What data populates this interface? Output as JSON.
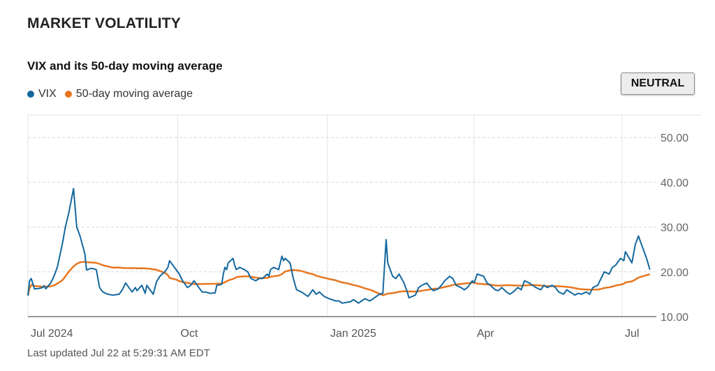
{
  "header": {
    "section_title": "MARKET VOLATILITY"
  },
  "badge": {
    "label": "NEUTRAL"
  },
  "footer": {
    "updated": "Last updated Jul 22 at 5:29:31 AM EDT"
  },
  "chart_data": {
    "type": "line",
    "title": "VIX and its 50-day moving average",
    "ylim": [
      10,
      55
    ],
    "y_ticks": [
      {
        "value": 10,
        "label": "10.00"
      },
      {
        "value": 20,
        "label": "20.00"
      },
      {
        "value": 30,
        "label": "30.00"
      },
      {
        "value": 40,
        "label": "40.00"
      },
      {
        "value": 50,
        "label": "50.00"
      }
    ],
    "xlim": [
      "2024-07-01",
      "2025-07-22"
    ],
    "x_ticks": [
      {
        "date": "2024-07-01",
        "label": "Jul 2024"
      },
      {
        "date": "2024-10-01",
        "label": "Oct"
      },
      {
        "date": "2025-01-01",
        "label": "Jan 2025"
      },
      {
        "date": "2025-04-01",
        "label": "Apr"
      },
      {
        "date": "2025-07-01",
        "label": "Jul"
      }
    ],
    "legend_position": "top-left",
    "grid": "horizontal dashed",
    "series": [
      {
        "name": "VIX",
        "color": "#13679e",
        "points": [
          [
            "2024-07-01",
            14.7
          ],
          [
            "2024-07-02",
            18.0
          ],
          [
            "2024-07-03",
            18.5
          ],
          [
            "2024-07-05",
            16.2
          ],
          [
            "2024-07-08",
            16.3
          ],
          [
            "2024-07-10",
            16.5
          ],
          [
            "2024-07-11",
            16.9
          ],
          [
            "2024-07-12",
            16.2
          ],
          [
            "2024-07-15",
            17.5
          ],
          [
            "2024-07-17",
            19.0
          ],
          [
            "2024-07-19",
            21.0
          ],
          [
            "2024-07-22",
            26.0
          ],
          [
            "2024-07-24",
            30.0
          ],
          [
            "2024-07-26",
            33.0
          ],
          [
            "2024-07-29",
            38.6
          ],
          [
            "2024-07-31",
            30.0
          ],
          [
            "2024-08-02",
            28.0
          ],
          [
            "2024-08-05",
            24.0
          ],
          [
            "2024-08-06",
            20.4
          ],
          [
            "2024-08-09",
            20.8
          ],
          [
            "2024-08-12",
            20.5
          ],
          [
            "2024-08-14",
            16.5
          ],
          [
            "2024-08-16",
            15.5
          ],
          [
            "2024-08-19",
            15.0
          ],
          [
            "2024-08-22",
            14.8
          ],
          [
            "2024-08-26",
            15.0
          ],
          [
            "2024-08-28",
            16.0
          ],
          [
            "2024-08-30",
            17.5
          ],
          [
            "2024-09-03",
            15.5
          ],
          [
            "2024-09-05",
            16.5
          ],
          [
            "2024-09-06",
            15.8
          ],
          [
            "2024-09-09",
            17.0
          ],
          [
            "2024-09-11",
            15.2
          ],
          [
            "2024-09-12",
            17.0
          ],
          [
            "2024-09-16",
            15.0
          ],
          [
            "2024-09-18",
            17.8
          ],
          [
            "2024-09-20",
            19.0
          ],
          [
            "2024-09-23",
            20.0
          ],
          [
            "2024-09-25",
            21.0
          ],
          [
            "2024-09-26",
            22.5
          ],
          [
            "2024-09-30",
            20.5
          ],
          [
            "2024-10-02",
            19.5
          ],
          [
            "2024-10-04",
            18.0
          ],
          [
            "2024-10-07",
            16.5
          ],
          [
            "2024-10-09",
            17.0
          ],
          [
            "2024-10-11",
            18.0
          ],
          [
            "2024-10-14",
            16.5
          ],
          [
            "2024-10-16",
            15.5
          ],
          [
            "2024-10-18",
            15.5
          ],
          [
            "2024-10-21",
            15.2
          ],
          [
            "2024-10-24",
            15.3
          ],
          [
            "2024-10-25",
            17.0
          ],
          [
            "2024-10-28",
            17.2
          ],
          [
            "2024-10-29",
            19.5
          ],
          [
            "2024-10-30",
            21.0
          ],
          [
            "2024-10-31",
            20.5
          ],
          [
            "2024-11-01",
            22.0
          ],
          [
            "2024-11-04",
            23.0
          ],
          [
            "2024-11-05",
            21.5
          ],
          [
            "2024-11-06",
            20.5
          ],
          [
            "2024-11-08",
            21.0
          ],
          [
            "2024-11-11",
            20.5
          ],
          [
            "2024-11-13",
            20.0
          ],
          [
            "2024-11-15",
            18.5
          ],
          [
            "2024-11-18",
            18.0
          ],
          [
            "2024-11-20",
            18.5
          ],
          [
            "2024-11-22",
            18.5
          ],
          [
            "2024-11-25",
            19.5
          ],
          [
            "2024-11-26",
            19.0
          ],
          [
            "2024-11-27",
            20.5
          ],
          [
            "2024-11-29",
            21.0
          ],
          [
            "2024-12-02",
            20.5
          ],
          [
            "2024-12-04",
            23.5
          ],
          [
            "2024-12-05",
            22.5
          ],
          [
            "2024-12-06",
            23.0
          ],
          [
            "2024-12-09",
            22.0
          ],
          [
            "2024-12-11",
            18.5
          ],
          [
            "2024-12-13",
            16.0
          ],
          [
            "2024-12-16",
            15.5
          ],
          [
            "2024-12-18",
            15.0
          ],
          [
            "2024-12-20",
            14.5
          ],
          [
            "2024-12-23",
            16.0
          ],
          [
            "2024-12-25",
            15.0
          ],
          [
            "2024-12-27",
            15.5
          ],
          [
            "2024-12-30",
            14.5
          ],
          [
            "2025-01-02",
            14.0
          ],
          [
            "2025-01-06",
            13.5
          ],
          [
            "2025-01-08",
            13.5
          ],
          [
            "2025-01-10",
            13.0
          ],
          [
            "2025-01-13",
            13.2
          ],
          [
            "2025-01-15",
            13.3
          ],
          [
            "2025-01-17",
            13.8
          ],
          [
            "2025-01-20",
            13.0
          ],
          [
            "2025-01-22",
            13.5
          ],
          [
            "2025-01-24",
            14.0
          ],
          [
            "2025-01-27",
            13.5
          ],
          [
            "2025-01-29",
            14.0
          ],
          [
            "2025-01-31",
            14.5
          ],
          [
            "2025-02-02",
            15.0
          ],
          [
            "2025-02-04",
            15.2
          ],
          [
            "2025-02-06",
            27.2
          ],
          [
            "2025-02-07",
            22.0
          ],
          [
            "2025-02-10",
            19.0
          ],
          [
            "2025-02-12",
            18.5
          ],
          [
            "2025-02-14",
            19.5
          ],
          [
            "2025-02-17",
            17.5
          ],
          [
            "2025-02-19",
            15.5
          ],
          [
            "2025-02-20",
            14.2
          ],
          [
            "2025-02-24",
            14.8
          ],
          [
            "2025-02-26",
            16.5
          ],
          [
            "2025-02-28",
            17.0
          ],
          [
            "2025-03-03",
            17.5
          ],
          [
            "2025-03-05",
            16.5
          ],
          [
            "2025-03-07",
            15.8
          ],
          [
            "2025-03-10",
            16.2
          ],
          [
            "2025-03-12",
            17.0
          ],
          [
            "2025-03-14",
            18.0
          ],
          [
            "2025-03-17",
            19.0
          ],
          [
            "2025-03-19",
            18.5
          ],
          [
            "2025-03-21",
            17.0
          ],
          [
            "2025-03-24",
            16.5
          ],
          [
            "2025-03-26",
            16.0
          ],
          [
            "2025-03-28",
            16.5
          ],
          [
            "2025-03-31",
            18.0
          ],
          [
            "2025-04-01",
            17.5
          ],
          [
            "2025-04-03",
            19.5
          ],
          [
            "2025-04-07",
            19.0
          ],
          [
            "2025-04-09",
            17.5
          ],
          [
            "2025-04-11",
            17.0
          ],
          [
            "2025-04-14",
            16.0
          ],
          [
            "2025-04-16",
            15.8
          ],
          [
            "2025-04-18",
            16.5
          ],
          [
            "2025-04-21",
            15.5
          ],
          [
            "2025-04-23",
            15.0
          ],
          [
            "2025-04-25",
            15.5
          ],
          [
            "2025-04-28",
            16.5
          ],
          [
            "2025-04-30",
            16.0
          ],
          [
            "2025-05-02",
            18.0
          ],
          [
            "2025-05-05",
            17.5
          ],
          [
            "2025-05-07",
            17.0
          ],
          [
            "2025-05-09",
            16.5
          ],
          [
            "2025-05-12",
            16.0
          ],
          [
            "2025-05-14",
            17.0
          ],
          [
            "2025-05-16",
            16.5
          ],
          [
            "2025-05-19",
            17.0
          ],
          [
            "2025-05-21",
            16.5
          ],
          [
            "2025-05-23",
            15.5
          ],
          [
            "2025-05-26",
            15.0
          ],
          [
            "2025-05-28",
            16.0
          ],
          [
            "2025-05-30",
            15.5
          ],
          [
            "2025-06-02",
            14.8
          ],
          [
            "2025-06-04",
            15.2
          ],
          [
            "2025-06-06",
            15.0
          ],
          [
            "2025-06-09",
            15.5
          ],
          [
            "2025-06-11",
            15.0
          ],
          [
            "2025-06-13",
            16.5
          ],
          [
            "2025-06-16",
            17.0
          ],
          [
            "2025-06-18",
            18.5
          ],
          [
            "2025-06-20",
            20.0
          ],
          [
            "2025-06-23",
            19.5
          ],
          [
            "2025-06-25",
            21.0
          ],
          [
            "2025-06-27",
            21.5
          ],
          [
            "2025-06-30",
            23.0
          ],
          [
            "2025-07-02",
            22.5
          ],
          [
            "2025-07-03",
            24.5
          ],
          [
            "2025-07-07",
            22.0
          ],
          [
            "2025-07-09",
            26.0
          ],
          [
            "2025-07-11",
            28.0
          ],
          [
            "2025-07-14",
            25.0
          ],
          [
            "2025-07-16",
            23.0
          ],
          [
            "2025-07-18",
            20.5
          ]
        ]
      },
      {
        "name": "50-day moving average",
        "color": "#e8761f",
        "points": []
      }
    ]
  }
}
